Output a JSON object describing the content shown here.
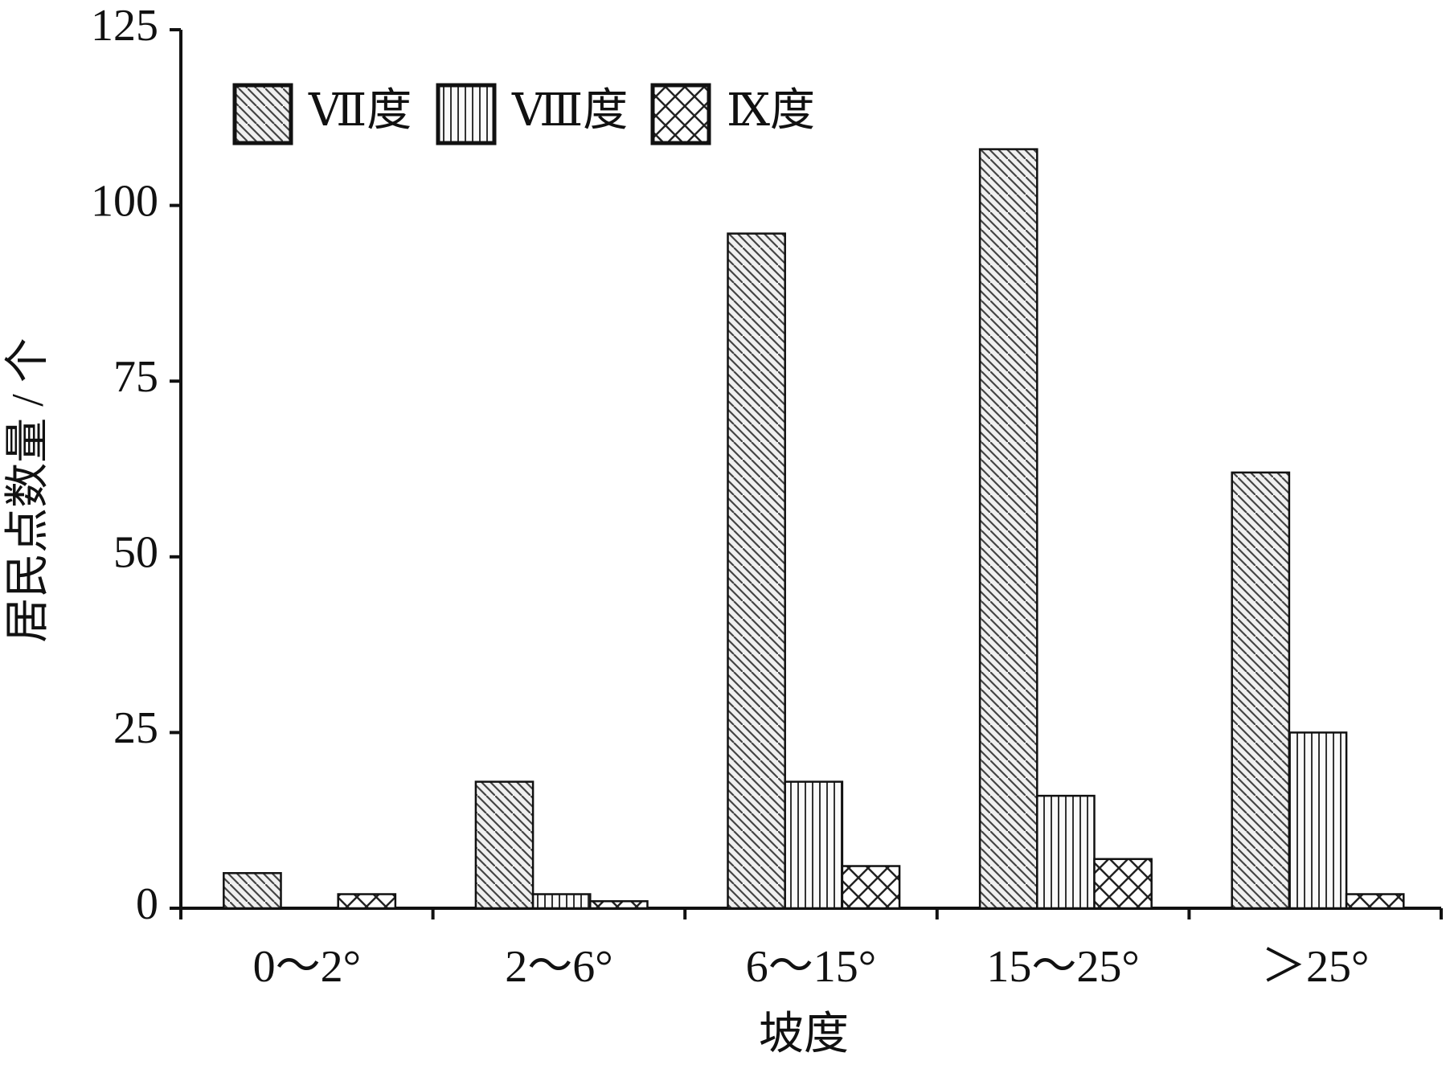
{
  "chart_data": {
    "type": "bar",
    "x_label": "坡度",
    "y_label": "居民点数量 / 个",
    "categories": [
      "0～2°",
      "2～6°",
      "6～15°",
      "15～25°",
      "＞25°"
    ],
    "series": [
      {
        "name": "Ⅶ度",
        "values": [
          5,
          18,
          96,
          108,
          62
        ]
      },
      {
        "name": "Ⅷ度",
        "values": [
          0,
          2,
          18,
          16,
          25
        ]
      },
      {
        "name": "Ⅸ度",
        "values": [
          2,
          1,
          6,
          7,
          2
        ]
      }
    ],
    "ylim": [
      0,
      125
    ],
    "yticks": [
      0,
      25,
      50,
      75,
      100,
      125
    ],
    "legend": "top-left"
  }
}
